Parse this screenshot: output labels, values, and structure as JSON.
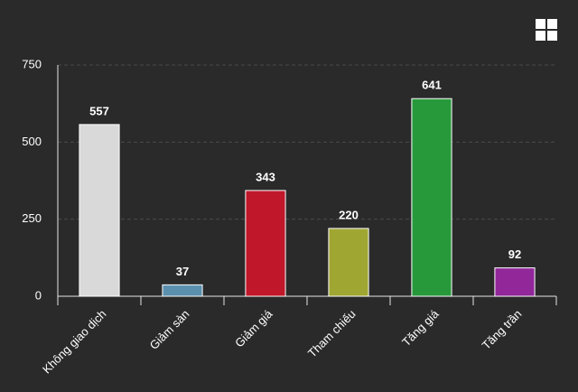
{
  "chart_data": {
    "type": "bar",
    "categories": [
      "Không giao dịch",
      "Giảm sàn",
      "Giảm giá",
      "Tham chiếu",
      "Tăng giá",
      "Tăng trần"
    ],
    "values": [
      557,
      37,
      343,
      220,
      641,
      92
    ],
    "colors": [
      "#d9d9d9",
      "#5b8fae",
      "#c0182a",
      "#a0a632",
      "#27993b",
      "#92279a"
    ],
    "ylim": [
      0,
      750
    ],
    "yticks": [
      0,
      250,
      500,
      750
    ],
    "grid": true
  }
}
